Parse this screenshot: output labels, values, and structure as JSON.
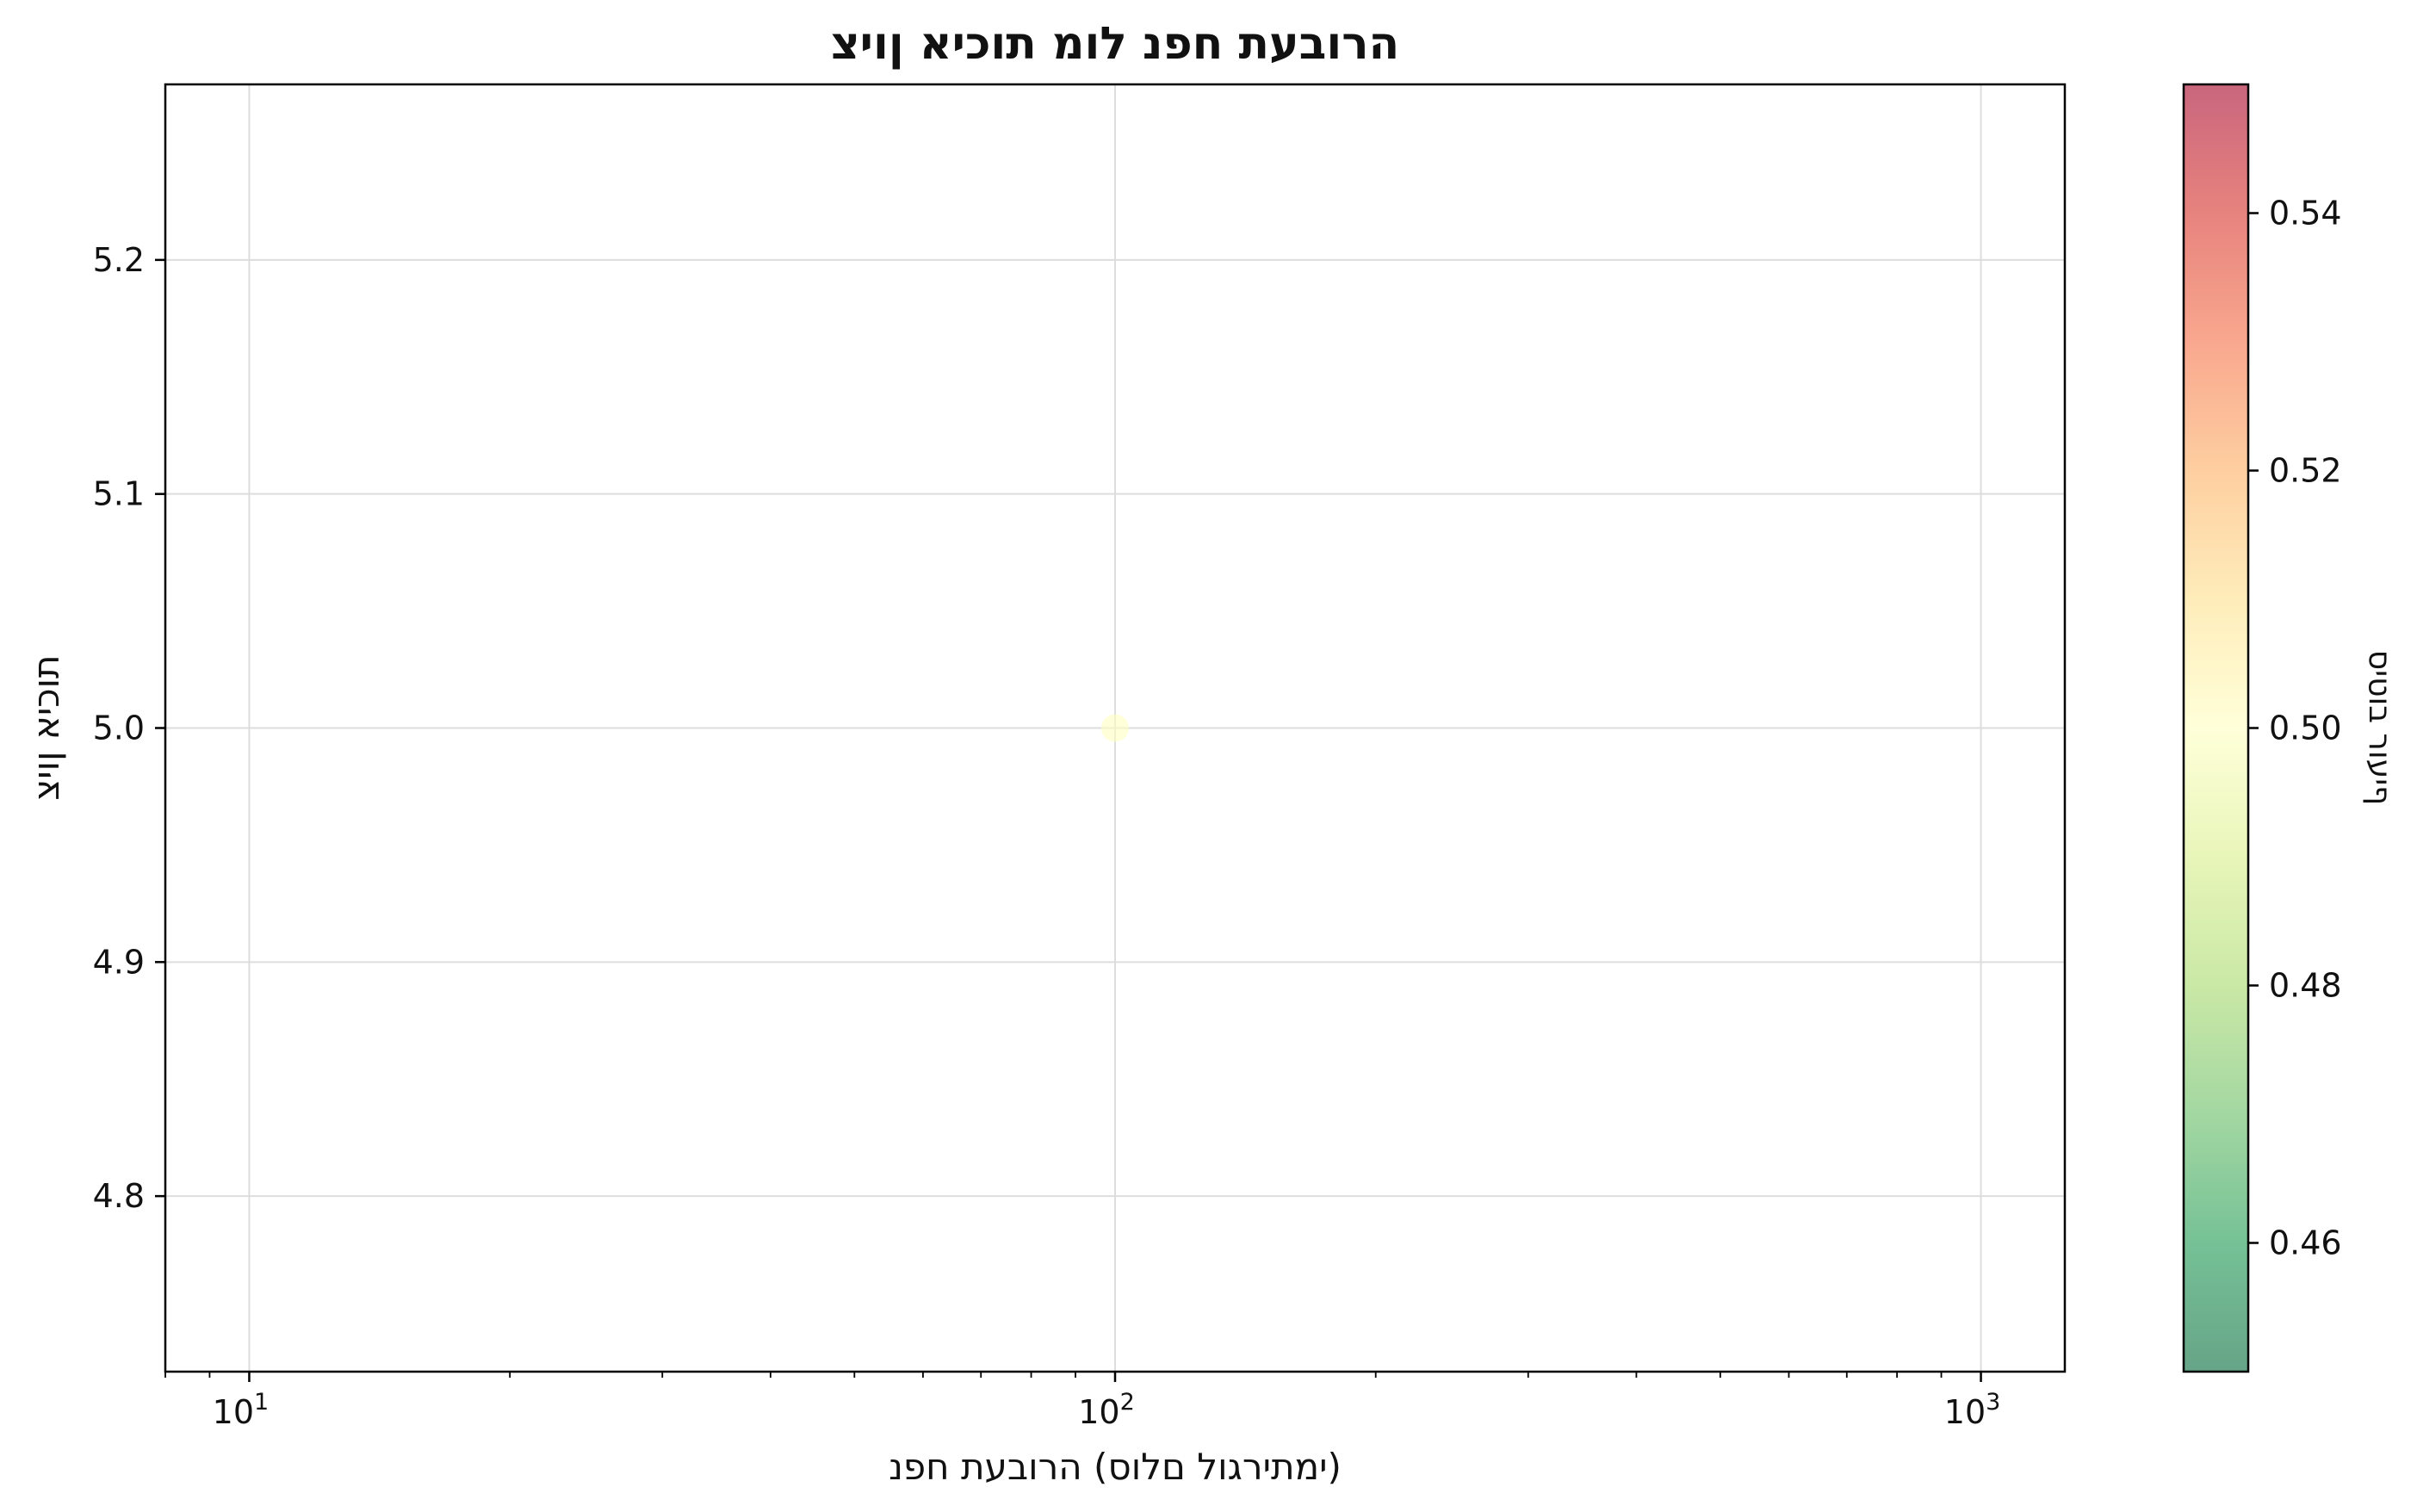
{
  "chart_data": {
    "type": "scatter",
    "title": "הרובעת חפנ לומ תוכיא ןויצ",
    "xlabel": "ימתירגול םלוס) הרובעת חפנ)",
    "ylabel": "תוכיא ןויצ",
    "x_scale": "log",
    "xlim": [
      8,
      1250
    ],
    "ylim": [
      4.725,
      5.275
    ],
    "x_major_ticks": [
      {
        "value": 10,
        "base": "10",
        "exp": "1"
      },
      {
        "value": 100,
        "base": "10",
        "exp": "2"
      },
      {
        "value": 1000,
        "base": "10",
        "exp": "3"
      }
    ],
    "y_ticks": [
      4.8,
      4.9,
      5.0,
      5.1,
      5.2
    ],
    "y_tick_labels": [
      "4.8",
      "4.9",
      "5.0",
      "5.1",
      "5.2"
    ],
    "grid": true,
    "points": [
      {
        "x": 100,
        "y": 5.0,
        "color_value": 0.5
      }
    ],
    "colorbar": {
      "label": "ףיעור בוטיס",
      "range": [
        0.45,
        0.55
      ],
      "ticks": [
        0.46,
        0.48,
        0.5,
        0.52,
        0.54
      ],
      "tick_labels": [
        "0.46",
        "0.48",
        "0.50",
        "0.52",
        "0.54"
      ],
      "colormap": "RdYlGn_r",
      "alpha": 0.6
    }
  }
}
